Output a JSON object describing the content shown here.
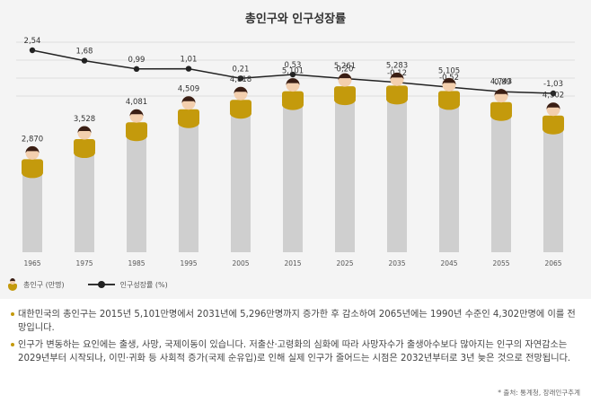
{
  "chart_data": {
    "type": "bar",
    "title": "총인구와 인구성장률",
    "categories": [
      "1965",
      "1975",
      "1985",
      "1995",
      "2005",
      "2015",
      "2025",
      "2035",
      "2045",
      "2055",
      "2065"
    ],
    "series": [
      {
        "name": "총인구 (만명)",
        "type": "bar",
        "values": [
          2870,
          3528,
          4081,
          4509,
          4818,
          5101,
          5261,
          5283,
          5105,
          4743,
          4302
        ],
        "labels": [
          "2,870",
          "3,528",
          "4,081",
          "4,509",
          "4,818",
          "5,101",
          "5,261",
          "5,283",
          "5,105",
          "4,743",
          "4,302"
        ],
        "color": "#cfcfcf",
        "marker_color": "#c49a0c"
      },
      {
        "name": "인구성장률 (%)",
        "type": "line",
        "values": [
          2.54,
          1.68,
          0.99,
          1.01,
          0.21,
          0.53,
          0.2,
          -0.12,
          -0.52,
          -0.89,
          -1.03
        ],
        "labels": [
          "2,54",
          "1,68",
          "0,99",
          "1,01",
          "0,21",
          "0,53",
          "0,20",
          "-0,12",
          "-0,52",
          "-0,89",
          "-1,03"
        ],
        "color": "#222222"
      }
    ],
    "grid": true,
    "legend_position": "bottom-left"
  },
  "notes": [
    "대한민국의 총인구는 2015년 5,101만명에서 2031년에 5,296만명까지 증가한 후 감소하여 2065년에는 1990년 수준인 4,302만명에 이를 전망입니다.",
    "인구가 변동하는 요인에는 출생, 사망, 국제이동이 있습니다. 저출산·고령화의 심화에 따라 사망자수가 출생아수보다 많아지는 인구의 자연감소는 2029년부터 시작되나, 이민·귀화 등 사회적 증가(국제 순유입)로 인해 실제 인구가 줄어드는 시점은 2032년부터로 3년 늦은 것으로 전망됩니다."
  ],
  "source": "* 출처: 통계청, 장래인구추계",
  "colors": {
    "panel_bg": "#f4f4f4",
    "bar": "#cfcfcf",
    "body": "#c49a0c",
    "hair": "#3a1e14",
    "face": "#f3cfae",
    "line": "#222222"
  }
}
